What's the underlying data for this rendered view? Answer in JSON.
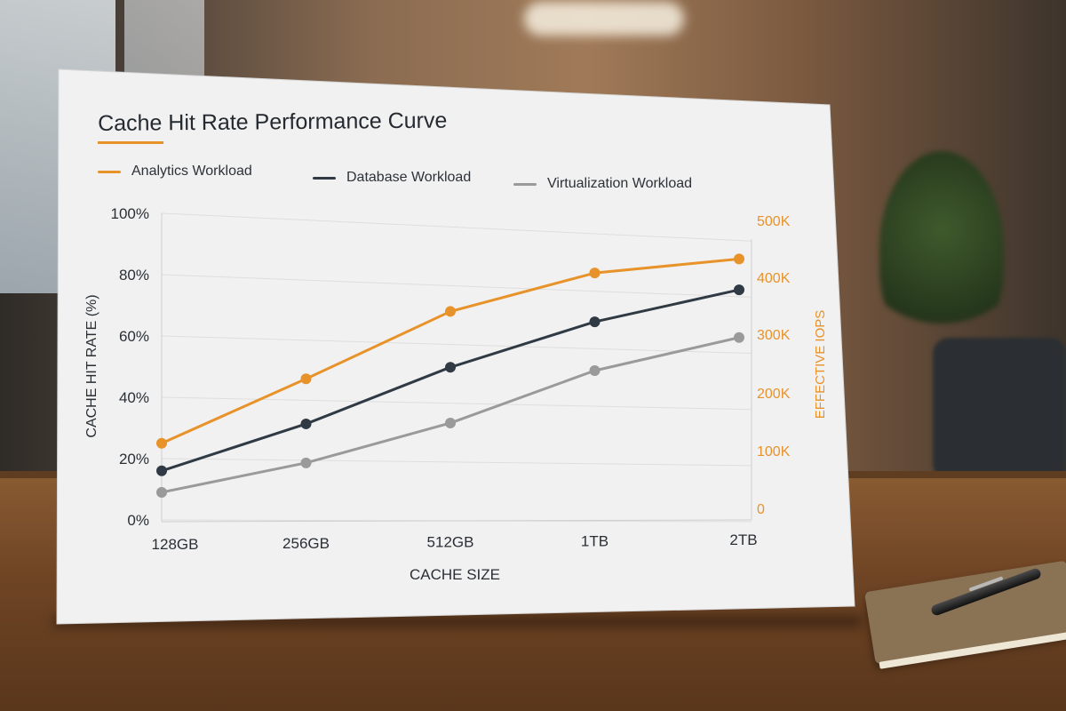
{
  "chart_data": {
    "type": "line",
    "title": "Cache Hit Rate Performance Curve",
    "categories": [
      "128GB",
      "256GB",
      "512GB",
      "1TB",
      "2TB"
    ],
    "xlabel": "CACHE SIZE",
    "ylabel": "CACHE HIT RATE (%)",
    "ylim": [
      0,
      100
    ],
    "y_ticks": [
      "0%",
      "20%",
      "40%",
      "60%",
      "80%",
      "100%"
    ],
    "ylabel_right": "EFFECTIVE IOPS",
    "ylim_right": [
      0,
      500000
    ],
    "y_ticks_right": [
      "0",
      "100K",
      "200K",
      "300K",
      "400K",
      "500K"
    ],
    "grid": true,
    "legend_position": "top",
    "series": [
      {
        "name": "Analytics Workload",
        "color": "#e8922a",
        "values": [
          25,
          47,
          71,
          86,
          93
        ]
      },
      {
        "name": "Database Workload",
        "color": "#2f3a44",
        "values": [
          16,
          32,
          52,
          69,
          82
        ]
      },
      {
        "name": "Virtualization Workload",
        "color": "#9a9a9a",
        "values": [
          9,
          19,
          33,
          52,
          65
        ]
      }
    ]
  }
}
